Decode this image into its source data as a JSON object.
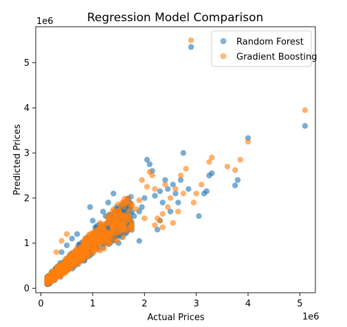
{
  "chart_data": {
    "type": "scatter",
    "title": "Regression Model Comparison",
    "xlabel": "Actual Prices",
    "ylabel": "Predicted Prices",
    "x_offset_label": "1e6",
    "y_offset_label": "1e6",
    "xlim": [
      -0.1,
      5.3
    ],
    "ylim": [
      -0.1,
      5.8
    ],
    "x_ticks": [
      0,
      1,
      2,
      3,
      4,
      5
    ],
    "y_ticks": [
      0,
      1,
      2,
      3,
      4,
      5
    ],
    "x_tick_labels": [
      "0",
      "1",
      "2",
      "3",
      "4",
      "5"
    ],
    "y_tick_labels": [
      "0",
      "1",
      "2",
      "3",
      "4",
      "5"
    ],
    "grid": false,
    "legend_position": "upper-right",
    "series": [
      {
        "name": "Random Forest",
        "color": "#1f77b4",
        "points": [
          [
            5.1,
            3.6
          ],
          [
            4.0,
            3.33
          ],
          [
            2.9,
            5.35
          ],
          [
            3.8,
            2.4
          ],
          [
            3.75,
            2.28
          ],
          [
            3.3,
            2.55
          ],
          [
            3.15,
            2.1
          ],
          [
            3.2,
            2.15
          ],
          [
            2.75,
            3.0
          ],
          [
            2.6,
            2.1
          ],
          [
            2.65,
            1.9
          ],
          [
            2.55,
            2.3
          ],
          [
            2.4,
            2.4
          ],
          [
            2.3,
            2.15
          ],
          [
            2.2,
            2.05
          ],
          [
            2.1,
            2.75
          ],
          [
            2.0,
            2.0
          ],
          [
            1.95,
            1.8
          ],
          [
            1.9,
            1.7
          ],
          [
            1.8,
            1.6
          ],
          [
            1.6,
            1.9
          ],
          [
            1.4,
            2.1
          ],
          [
            1.3,
            1.9
          ],
          [
            1.2,
            1.7
          ],
          [
            0.95,
            1.8
          ],
          [
            1.0,
            1.5
          ],
          [
            2.05,
            2.85
          ],
          [
            2.5,
            1.7
          ],
          [
            2.3,
            1.5
          ],
          [
            1.9,
            1.05
          ],
          [
            1.7,
            1.3
          ],
          [
            2.15,
            2.6
          ],
          [
            2.25,
            1.3
          ],
          [
            1.5,
            1.0
          ],
          [
            1.25,
            1.6
          ],
          [
            0.7,
            1.2
          ],
          [
            0.5,
            0.95
          ],
          [
            0.4,
            0.8
          ],
          [
            0.6,
            1.1
          ],
          [
            2.7,
            2.4
          ],
          [
            3.05,
            1.6
          ],
          [
            2.85,
            2.2
          ],
          [
            1.65,
            1.45
          ],
          [
            1.05,
            1.35
          ],
          [
            1.45,
            1.55
          ],
          [
            3.25,
            2.5
          ],
          [
            2.45,
            2.2
          ],
          [
            2.35,
            1.9
          ]
        ]
      },
      {
        "name": "Gradient Boosting",
        "color": "#ff7f0e",
        "points": [
          [
            5.1,
            3.95
          ],
          [
            2.9,
            5.5
          ],
          [
            4.0,
            3.25
          ],
          [
            3.85,
            2.85
          ],
          [
            3.75,
            2.62
          ],
          [
            3.25,
            2.8
          ],
          [
            3.3,
            2.9
          ],
          [
            3.1,
            2.3
          ],
          [
            2.8,
            2.65
          ],
          [
            2.7,
            2.5
          ],
          [
            2.6,
            2.2
          ],
          [
            2.5,
            2.0
          ],
          [
            2.45,
            1.8
          ],
          [
            2.35,
            1.65
          ],
          [
            2.3,
            1.5
          ],
          [
            2.2,
            1.4
          ],
          [
            2.1,
            2.58
          ],
          [
            2.15,
            2.5
          ],
          [
            2.05,
            2.25
          ],
          [
            1.9,
            1.95
          ],
          [
            1.85,
            1.75
          ],
          [
            2.0,
            1.55
          ],
          [
            2.25,
            1.55
          ],
          [
            2.4,
            2.3
          ],
          [
            1.75,
            1.3
          ],
          [
            1.6,
            1.5
          ],
          [
            1.5,
            1.6
          ],
          [
            1.3,
            1.2
          ],
          [
            1.35,
            1.5
          ],
          [
            1.2,
            1.3
          ],
          [
            2.35,
            1.35
          ],
          [
            2.55,
            1.45
          ],
          [
            2.65,
            1.7
          ],
          [
            3.0,
            2.1
          ],
          [
            1.95,
            2.4
          ],
          [
            0.85,
            1.1
          ],
          [
            0.5,
            1.2
          ],
          [
            0.3,
            0.8
          ],
          [
            0.4,
            1.05
          ],
          [
            0.6,
            0.5
          ],
          [
            2.75,
            2.1
          ],
          [
            1.65,
            1.9
          ],
          [
            1.4,
            1.75
          ],
          [
            2.95,
            1.9
          ],
          [
            3.6,
            2.7
          ],
          [
            2.2,
            2.2
          ],
          [
            1.1,
            1.25
          ]
        ]
      }
    ]
  }
}
